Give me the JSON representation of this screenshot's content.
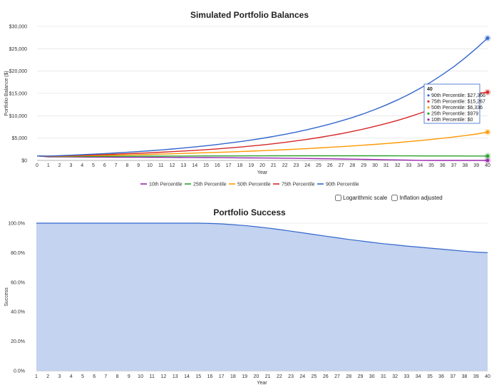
{
  "controls": {
    "log_scale_label": "Logarithmic scale",
    "log_scale_checked": false,
    "inflation_label": "Inflation adjusted",
    "inflation_checked": false
  },
  "chart_data": [
    {
      "type": "line",
      "title": "Simulated Portfolio Balances",
      "xlabel": "Year",
      "ylabel": "Portfolio Balance ($)",
      "x": [
        0,
        1,
        2,
        3,
        4,
        5,
        6,
        7,
        8,
        9,
        10,
        11,
        12,
        13,
        14,
        15,
        16,
        17,
        18,
        19,
        20,
        21,
        22,
        23,
        24,
        25,
        26,
        27,
        28,
        29,
        30,
        31,
        32,
        33,
        34,
        35,
        36,
        37,
        38,
        39,
        40
      ],
      "ylim": [
        0,
        30000
      ],
      "yticks": [
        0,
        5000,
        10000,
        15000,
        20000,
        25000,
        30000
      ],
      "ytick_labels": [
        "$0",
        "$5,000",
        "$10,000",
        "$15,000",
        "$20,000",
        "$25,000",
        "$30,000"
      ],
      "grid": true,
      "legend": "bottom",
      "series": [
        {
          "name": "10th Percentile",
          "color": "#9c27b0",
          "values": [
            1000,
            800,
            780,
            760,
            750,
            740,
            730,
            720,
            710,
            700,
            690,
            680,
            670,
            660,
            650,
            640,
            620,
            600,
            580,
            560,
            540,
            520,
            490,
            460,
            430,
            400,
            360,
            320,
            280,
            240,
            200,
            150,
            110,
            60,
            20,
            0,
            0,
            0,
            0,
            0,
            0
          ]
        },
        {
          "name": "25th Percentile",
          "color": "#2ca02c",
          "values": [
            1000,
            860,
            870,
            880,
            890,
            900,
            910,
            920,
            930,
            940,
            950,
            960,
            970,
            980,
            990,
            1000,
            1000,
            1010,
            1010,
            1020,
            1020,
            1030,
            1030,
            1030,
            1030,
            1040,
            1040,
            1040,
            1040,
            1030,
            1030,
            1030,
            1020,
            1020,
            1010,
            1010,
            1000,
            1000,
            990,
            985,
            979
          ]
        },
        {
          "name": "50th Percentile",
          "color": "#ff9800",
          "values": [
            1000,
            910,
            950,
            990,
            1030,
            1080,
            1130,
            1180,
            1230,
            1290,
            1350,
            1420,
            1490,
            1560,
            1640,
            1720,
            1800,
            1890,
            1980,
            2080,
            2180,
            2290,
            2400,
            2520,
            2650,
            2790,
            2930,
            3080,
            3240,
            3410,
            3590,
            3780,
            3990,
            4210,
            4440,
            4690,
            4960,
            5250,
            5560,
            5900,
            6336
          ]
        },
        {
          "name": "75th Percentile",
          "color": "#d62728",
          "values": [
            1000,
            950,
            1010,
            1080,
            1150,
            1230,
            1310,
            1400,
            1500,
            1600,
            1710,
            1830,
            1960,
            2100,
            2250,
            2410,
            2590,
            2780,
            2990,
            3220,
            3470,
            3740,
            4040,
            4370,
            4720,
            5110,
            5530,
            5990,
            6490,
            7030,
            7620,
            8260,
            8960,
            9720,
            10550,
            11450,
            12430,
            13500,
            14660,
            15000,
            15267
          ]
        },
        {
          "name": "90th Percentile",
          "color": "#3366cc",
          "values": [
            1000,
            980,
            1070,
            1170,
            1280,
            1400,
            1530,
            1670,
            1820,
            1980,
            2160,
            2350,
            2560,
            2780,
            3020,
            3280,
            3560,
            3870,
            4200,
            4560,
            4950,
            5380,
            5840,
            6340,
            6890,
            7480,
            8130,
            8840,
            9610,
            10460,
            11390,
            12410,
            13530,
            14760,
            16110,
            17590,
            19210,
            20990,
            22940,
            25080,
            27366
          ]
        }
      ],
      "tooltip": {
        "title": "40",
        "lines": [
          "90th Percentile: $27,366",
          "75th Percentile: $15,267",
          "50th Percentile: $6,336",
          "25th Percentile: $979",
          "10th Percentile: $0"
        ]
      }
    },
    {
      "type": "area",
      "title": "Portfolio Success",
      "xlabel": "Year",
      "ylabel": "Success",
      "x": [
        1,
        2,
        3,
        4,
        5,
        6,
        7,
        8,
        9,
        10,
        11,
        12,
        13,
        14,
        15,
        16,
        17,
        18,
        19,
        20,
        21,
        22,
        23,
        24,
        25,
        26,
        27,
        28,
        29,
        30,
        31,
        32,
        33,
        34,
        35,
        36,
        37,
        38,
        39,
        40
      ],
      "ylim": [
        0,
        100
      ],
      "yticks": [
        0,
        20,
        40,
        60,
        80,
        100
      ],
      "ytick_labels": [
        "0.0%",
        "20.0%",
        "40.0%",
        "60.0%",
        "80.0%",
        "100.0%"
      ],
      "grid": true,
      "series": [
        {
          "name": "",
          "color": "#3366cc",
          "fill": "#c3d3f0",
          "values": [
            100,
            100,
            100,
            100,
            100,
            100,
            100,
            100,
            100,
            100,
            100,
            100,
            100,
            100,
            100,
            99.8,
            99.5,
            99.0,
            98.4,
            97.6,
            96.7,
            95.7,
            94.6,
            93.5,
            92.3,
            91.2,
            90.1,
            89.0,
            88.0,
            87.0,
            86.1,
            85.3,
            84.5,
            83.8,
            83.1,
            82.4,
            81.7,
            81.0,
            80.4,
            80.0
          ]
        }
      ]
    }
  ]
}
